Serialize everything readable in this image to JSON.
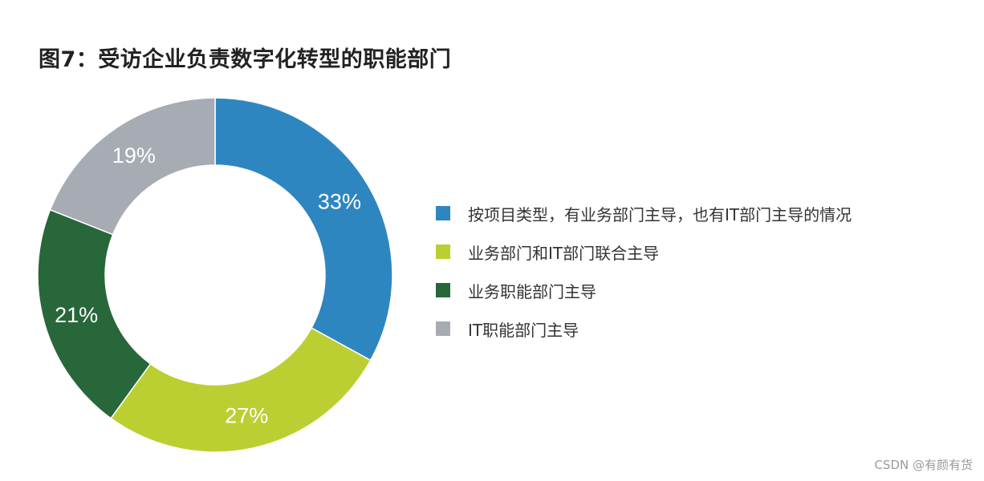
{
  "title": "图7：受访企业负责数字化转型的职能部门",
  "watermark": "CSDN @有颜有货",
  "chart_data": {
    "type": "pie",
    "variant": "donut",
    "title": "图7：受访企业负责数字化转型的职能部门",
    "legend_position": "right",
    "slices": [
      {
        "label": "按项目类型，有业务部门主导，也有IT部门主导的情况",
        "value": 33,
        "value_label": "33%",
        "color": "#2e86c1"
      },
      {
        "label": "业务部门和IT部门联合主导",
        "value": 27,
        "value_label": "27%",
        "color": "#bccf32"
      },
      {
        "label": "业务职能部门主导",
        "value": 21,
        "value_label": "21%",
        "color": "#27673a"
      },
      {
        "label": "IT职能部门主导",
        "value": 19,
        "value_label": "19%",
        "color": "#a7abb3"
      }
    ]
  }
}
